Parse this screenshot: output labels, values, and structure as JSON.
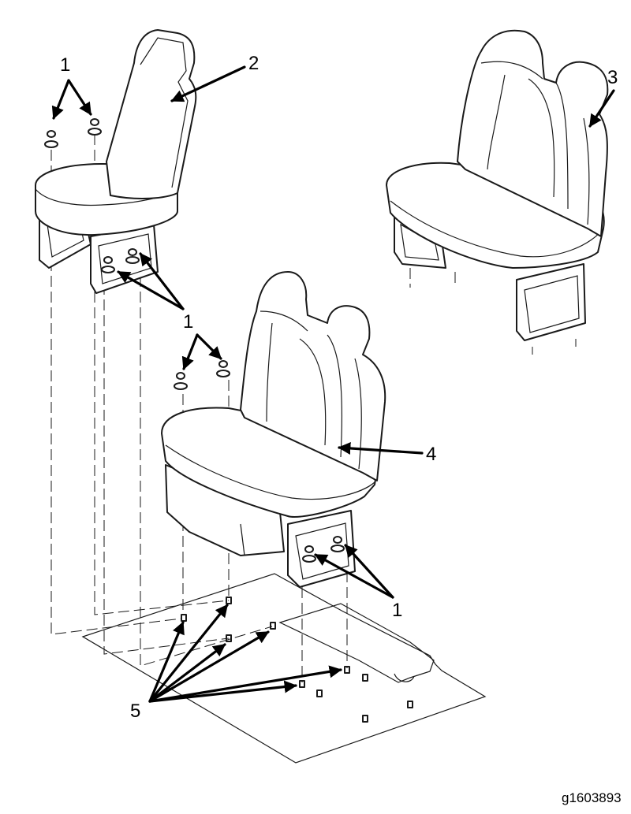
{
  "callouts": {
    "c1a": "1",
    "c1b": "1",
    "c1c": "1",
    "c2": "2",
    "c3": "3",
    "c4": "4",
    "c5": "5"
  },
  "figure_id": "g1603893",
  "colors": {
    "line": "#1a1a1a",
    "background": "#ffffff"
  }
}
